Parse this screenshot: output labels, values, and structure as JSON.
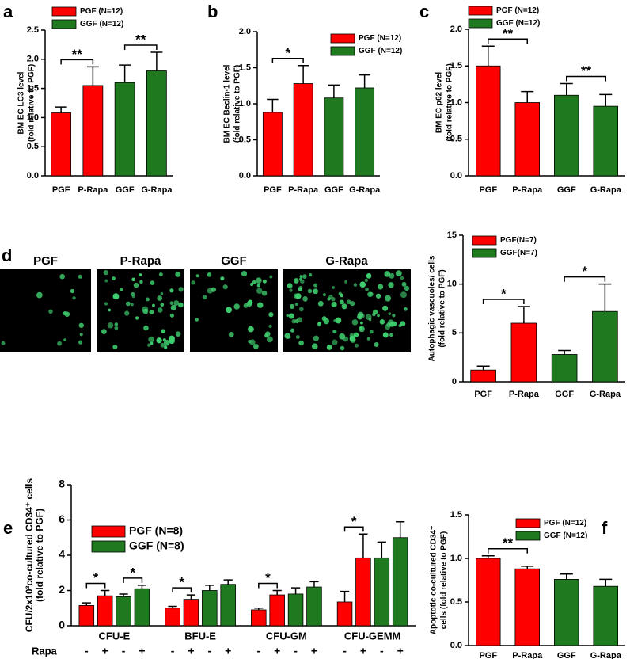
{
  "chart_data": [
    {
      "type": "bar",
      "panel": "a",
      "ylabel": [
        "BM EC LC3 level",
        "(fold relative to PGF)"
      ],
      "categories": [
        "PGF",
        "P-Rapa",
        "GGF",
        "G-Rapa"
      ],
      "series": [
        {
          "name": "PGF (N=12)",
          "color": "#ff0000",
          "values": [
            1.08,
            1.55,
            null,
            null
          ],
          "errors": [
            0.1,
            0.32,
            null,
            null
          ]
        },
        {
          "name": "GGF (N=12)",
          "color": "#1f7a1f",
          "values": [
            null,
            null,
            1.6,
            1.8
          ],
          "errors": [
            null,
            null,
            0.3,
            0.32
          ]
        }
      ],
      "ylim": [
        0,
        2.5
      ],
      "yticks": [
        {
          "value": 0,
          "label": "0.0"
        },
        0.5,
        {
          "value": 1,
          "label": "1.0"
        },
        1.5,
        {
          "value": 2,
          "label": "2.0"
        },
        2.5
      ],
      "brackets": [
        {
          "text": "**",
          "between": [
            "PGF",
            "P-Rapa"
          ]
        },
        {
          "text": "**",
          "between": [
            "GGF",
            "G-Rapa"
          ]
        }
      ]
    },
    {
      "type": "bar",
      "panel": "b",
      "ylabel": [
        "BM EC Beclin-1 level",
        "(fold relative to PGF)"
      ],
      "categories": [
        "PGF",
        "P-Rapa",
        "GGF",
        "G-Rapa"
      ],
      "series": [
        {
          "name": "PGF (N=12)",
          "color": "#ff0000",
          "values": [
            0.88,
            1.28,
            null,
            null
          ],
          "errors": [
            0.18,
            0.25,
            null,
            null
          ]
        },
        {
          "name": "GGF (N=12)",
          "color": "#1f7a1f",
          "values": [
            null,
            null,
            1.08,
            1.22
          ],
          "errors": [
            null,
            null,
            0.18,
            0.18
          ]
        }
      ],
      "ylim": [
        0,
        2
      ],
      "yticks": [
        {
          "value": 0,
          "label": "0.0"
        },
        0.5,
        {
          "value": 1,
          "label": "1.0"
        },
        1.5,
        {
          "value": 2,
          "label": "2.0"
        }
      ],
      "brackets": [
        {
          "text": "*",
          "between": [
            "PGF",
            "P-Rapa"
          ]
        }
      ]
    },
    {
      "type": "bar",
      "panel": "c",
      "ylabel": [
        "BM EC p62 level",
        "(fold relative to PGF)"
      ],
      "categories": [
        "PGF",
        "P-Rapa",
        "GGF",
        "G-Rapa"
      ],
      "series": [
        {
          "name": "PGF (N=12)",
          "color": "#ff0000",
          "values": [
            1.5,
            1.0,
            null,
            null
          ],
          "errors": [
            0.27,
            0.15,
            null,
            null
          ]
        },
        {
          "name": "GGF (N=12)",
          "color": "#1f7a1f",
          "values": [
            null,
            null,
            1.1,
            0.95
          ],
          "errors": [
            null,
            null,
            0.16,
            0.16
          ]
        }
      ],
      "ylim": [
        0,
        2
      ],
      "yticks": [
        {
          "value": 0,
          "label": "0.0"
        },
        0.5,
        {
          "value": 1,
          "label": "1.0"
        },
        1.5,
        {
          "value": 2,
          "label": "2.0"
        }
      ],
      "brackets": [
        {
          "text": "**",
          "between": [
            "PGF",
            "P-Rapa"
          ]
        },
        {
          "text": "**",
          "between": [
            "GGF",
            "G-Rapa"
          ]
        }
      ]
    },
    {
      "type": "bar",
      "panel": "d",
      "image_labels": [
        "PGF",
        "P-Rapa",
        "GGF",
        "G-Rapa"
      ],
      "ylabel": [
        "Autophagic  vascuoles/ cells",
        "(fold relative to PGF)"
      ],
      "categories": [
        "PGF",
        "P-Rapa",
        "GGF",
        "G-Rapa"
      ],
      "series": [
        {
          "name": "PGF(N=7)",
          "color": "#ff0000",
          "values": [
            1.2,
            6.0,
            null,
            null
          ],
          "errors": [
            0.4,
            1.7,
            null,
            null
          ]
        },
        {
          "name": "GGF(N=7)",
          "color": "#1f7a1f",
          "values": [
            null,
            null,
            2.8,
            7.2
          ],
          "errors": [
            null,
            null,
            0.4,
            2.8
          ]
        }
      ],
      "ylim": [
        0,
        15
      ],
      "yticks": [
        0,
        5,
        10,
        15
      ],
      "brackets": [
        {
          "text": "*",
          "between": [
            "PGF",
            "P-Rapa"
          ]
        },
        {
          "text": "*",
          "between": [
            "GGF",
            "G-Rapa"
          ]
        }
      ]
    },
    {
      "type": "grouped_bar",
      "panel": "e",
      "ylabel": [
        "CFU/2x10³co-cultured CD34⁺ cells",
        "(fold relative to PGF)"
      ],
      "groups": [
        "CFU-E",
        "BFU-E",
        "CFU-GM",
        "CFU-GEMM"
      ],
      "rapa_label": "Rapa",
      "rapa_states": [
        "-",
        "+"
      ],
      "series": [
        {
          "name": "PGF (N=8)",
          "color": "#ff0000",
          "values": [
            [
              1.15,
              1.7
            ],
            [
              1.0,
              1.5
            ],
            [
              0.9,
              1.75
            ],
            [
              1.35,
              3.85
            ]
          ],
          "errors": [
            [
              0.15,
              0.3
            ],
            [
              0.1,
              0.25
            ],
            [
              0.1,
              0.25
            ],
            [
              0.6,
              1.35
            ]
          ]
        },
        {
          "name": "GGF (N=8)",
          "color": "#1f7a1f",
          "values": [
            [
              1.65,
              2.1
            ],
            [
              2.0,
              2.35
            ],
            [
              1.8,
              2.2
            ],
            [
              3.85,
              5.0
            ]
          ],
          "errors": [
            [
              0.15,
              0.2
            ],
            [
              0.3,
              0.25
            ],
            [
              0.35,
              0.3
            ],
            [
              0.9,
              0.9
            ]
          ]
        }
      ],
      "ylim": [
        0,
        8
      ],
      "yticks": [
        0,
        2,
        4,
        6,
        8
      ],
      "brackets": [
        {
          "text": "*",
          "group": "CFU-E",
          "series": "PGF (N=8)"
        },
        {
          "text": "*",
          "group": "CFU-E",
          "series": "GGF (N=8)"
        },
        {
          "text": "*",
          "group": "BFU-E",
          "series": "PGF (N=8)"
        },
        {
          "text": "*",
          "group": "CFU-GM",
          "series": "PGF (N=8)"
        },
        {
          "text": "*",
          "group": "CFU-GEMM",
          "series": "PGF (N=8)"
        }
      ]
    },
    {
      "type": "bar",
      "panel": "f",
      "ylabel": [
        "Apoptotic co-cultured CD34⁺",
        "cells (fold relative to PGF)"
      ],
      "categories": [
        "PGF",
        "P-Rapa",
        "GGF",
        "G-Rapa"
      ],
      "series": [
        {
          "name": "PGF (N=12)",
          "color": "#ff0000",
          "values": [
            1.0,
            0.88,
            null,
            null
          ],
          "errors": [
            0.03,
            0.03,
            null,
            null
          ]
        },
        {
          "name": "GGF (N=12)",
          "color": "#1f7a1f",
          "values": [
            null,
            null,
            0.76,
            0.68
          ],
          "errors": [
            null,
            null,
            0.06,
            0.08
          ]
        }
      ],
      "ylim": [
        0,
        1.5
      ],
      "yticks": [
        {
          "value": 0,
          "label": "0.0"
        },
        0.5,
        {
          "value": 1,
          "label": "1.0"
        },
        1.5
      ],
      "brackets": [
        {
          "text": "**",
          "between": [
            "PGF",
            "P-Rapa"
          ]
        }
      ]
    }
  ]
}
